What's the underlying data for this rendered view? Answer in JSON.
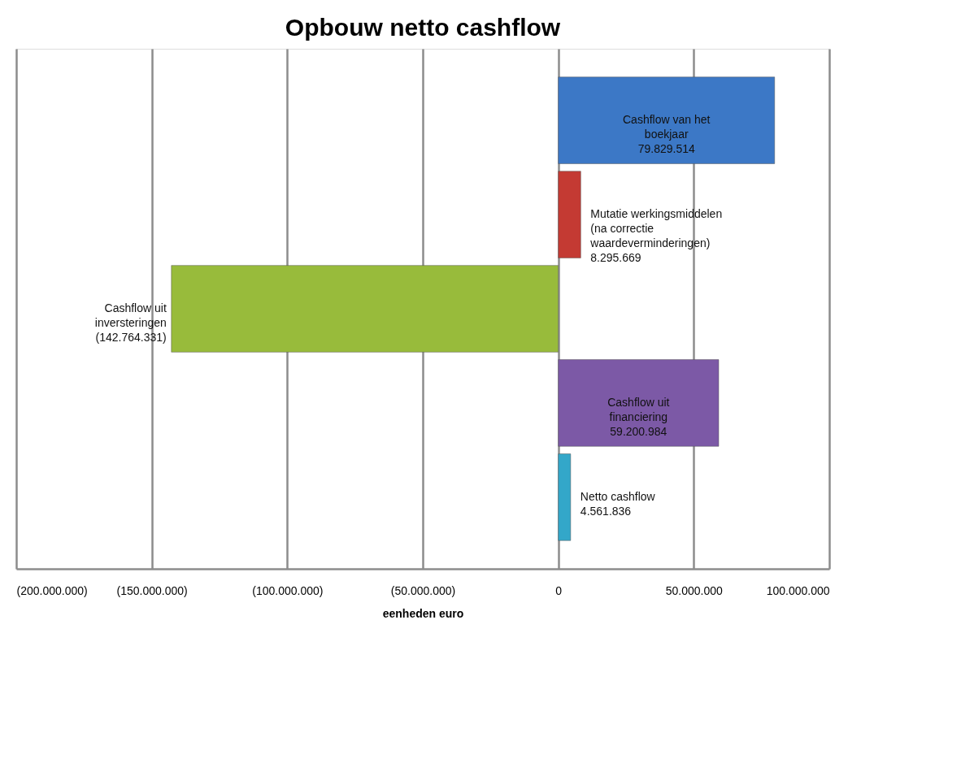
{
  "chart_data": {
    "type": "bar",
    "orientation": "horizontal",
    "title": "Opbouw netto cashflow",
    "xlabel": "eenheden euro",
    "categories": [
      "Cashflow van het boekjaar",
      "Mutatie werkingsmiddelen (na correctie waardeverminderingen)",
      "Cashflow uit inversteringen",
      "Cashflow uit financiering",
      "Netto cashflow"
    ],
    "values": [
      79829514,
      8295669,
      -142764331,
      59200984,
      4561836
    ],
    "value_labels": [
      "79.829.514",
      "8.295.669",
      "(142.764.331)",
      "59.200.984",
      "4.561.836"
    ],
    "colors": [
      "#3c78c6",
      "#c43a33",
      "#98bb3b",
      "#7c59a6",
      "#33a7c9"
    ],
    "xlim": [
      -200000000,
      100000000
    ],
    "xticks": [
      {
        "value": -200000000,
        "label": "(200.000.000)"
      },
      {
        "value": -150000000,
        "label": "(150.000.000)"
      },
      {
        "value": -100000000,
        "label": "(100.000.000)"
      },
      {
        "value": -50000000,
        "label": "(50.000.000)"
      },
      {
        "value": 0,
        "label": "0"
      },
      {
        "value": 50000000,
        "label": "50.000.000"
      },
      {
        "value": 100000000,
        "label": "100.000.000"
      }
    ],
    "grid": "x",
    "tick_labels": "x"
  }
}
